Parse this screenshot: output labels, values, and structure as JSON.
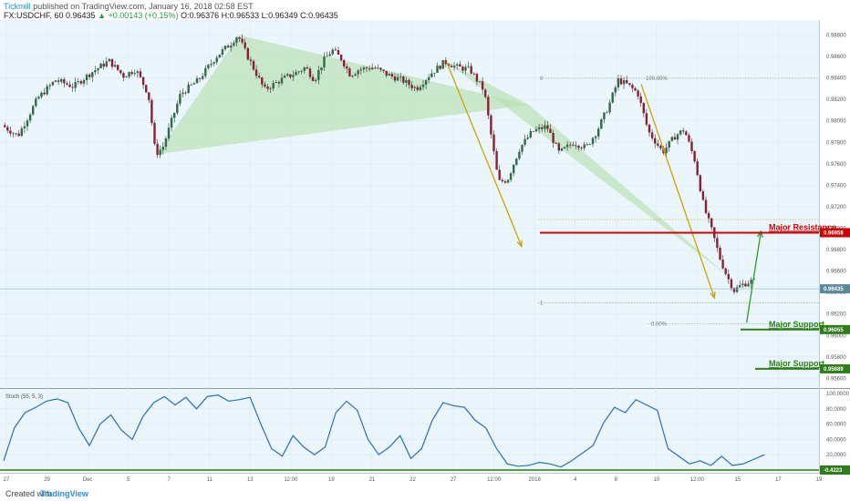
{
  "header": {
    "author": "Tickmill",
    "published_text": "published on TradingView.com, January 16, 2018 02:58 EST",
    "symbol_line": "FX:USDCHF, 60",
    "price": "0.96435",
    "change": "▲ +0.00143 (+0.15%)",
    "ohlc": "O:0.96376 H:0.96533 L:0.96349 C:0.96435"
  },
  "footer": {
    "created_with": "Created with",
    "brand": "TradingView"
  },
  "chart_data": [
    {
      "type": "candlestick",
      "title": "FX:USDCHF, 60",
      "x_ticks": [
        "27",
        "29",
        "Dec",
        "5",
        "7",
        "11",
        "13",
        "12:00",
        "19",
        "21",
        "22",
        "27",
        "12:00",
        "2018",
        "4",
        "8",
        "10",
        "12:00",
        "15",
        "17",
        "19"
      ],
      "y_ticks": [
        "0.98800",
        "0.98600",
        "0.98400",
        "0.98200",
        "0.98000",
        "0.97800",
        "0.97600",
        "0.97400",
        "0.97200",
        "0.97000",
        "0.96800",
        "0.96600",
        "0.96400",
        "0.96200",
        "0.96000",
        "0.95800",
        "0.95600"
      ],
      "ylim": [
        0.9551,
        0.9894
      ],
      "path": [
        [
          0,
          0.9796
        ],
        [
          9,
          0.9786
        ],
        [
          20,
          0.9821
        ],
        [
          30,
          0.9838
        ],
        [
          40,
          0.9832
        ],
        [
          50,
          0.9845
        ],
        [
          60,
          0.9856
        ],
        [
          68,
          0.9842
        ],
        [
          75,
          0.9848
        ],
        [
          82,
          0.9825
        ],
        [
          86,
          0.9769
        ],
        [
          90,
          0.9775
        ],
        [
          100,
          0.9825
        ],
        [
          110,
          0.9838
        ],
        [
          120,
          0.986
        ],
        [
          128,
          0.9872
        ],
        [
          132,
          0.988
        ],
        [
          137,
          0.9862
        ],
        [
          147,
          0.9829
        ],
        [
          157,
          0.9839
        ],
        [
          165,
          0.9845
        ],
        [
          170,
          0.985
        ],
        [
          175,
          0.9838
        ],
        [
          180,
          0.9856
        ],
        [
          185,
          0.9866
        ],
        [
          190,
          0.9858
        ],
        [
          195,
          0.9843
        ],
        [
          200,
          0.9848
        ],
        [
          208,
          0.985
        ],
        [
          216,
          0.9843
        ],
        [
          224,
          0.9838
        ],
        [
          232,
          0.983
        ],
        [
          240,
          0.9844
        ],
        [
          248,
          0.9855
        ],
        [
          255,
          0.985
        ],
        [
          262,
          0.9848
        ],
        [
          270,
          0.9828
        ],
        [
          278,
          0.9743
        ],
        [
          283,
          0.9745
        ],
        [
          290,
          0.9775
        ],
        [
          297,
          0.979
        ],
        [
          305,
          0.9795
        ],
        [
          312,
          0.977
        ],
        [
          320,
          0.978
        ],
        [
          327,
          0.9775
        ],
        [
          333,
          0.979
        ],
        [
          340,
          0.9815
        ],
        [
          345,
          0.9838
        ],
        [
          350,
          0.9834
        ],
        [
          356,
          0.9826
        ],
        [
          362,
          0.979
        ],
        [
          370,
          0.9771
        ],
        [
          377,
          0.9786
        ],
        [
          382,
          0.9792
        ],
        [
          388,
          0.9763
        ],
        [
          393,
          0.972
        ],
        [
          398,
          0.9695
        ],
        [
          402,
          0.9672
        ],
        [
          406,
          0.9655
        ],
        [
          410,
          0.9642
        ],
        [
          414,
          0.9647
        ],
        [
          420,
          0.9651
        ]
      ],
      "current_price": 0.96435
    },
    {
      "type": "annotations",
      "pattern_triangles": [
        {
          "points": [
            [
              86,
              0.9769
            ],
            [
              132,
              0.988
            ],
            [
              294,
              0.9815
            ]
          ]
        },
        {
          "points": [
            [
              294,
              0.9815
            ],
            [
              248,
              0.9855
            ],
            [
              406,
              0.9655
            ]
          ]
        }
      ],
      "fib_levels": [
        {
          "label": "0",
          "value": 0.98397
        },
        {
          "label": "100.00%",
          "value": 0.98397
        },
        {
          "label": "",
          "value": 0.9708
        },
        {
          "label": "1",
          "value": 0.96303
        },
        {
          "label": "0.00%",
          "value": 0.9611
        }
      ],
      "horizontal_levels": [
        {
          "label": "Major Resistance",
          "value": 0.96958,
          "tag": "0.96958",
          "color": "#cc0000"
        },
        {
          "label": "Major Support",
          "value": 0.96055,
          "tag": "0.96055",
          "color": "#2e7d18"
        },
        {
          "label": "Major Support",
          "value": 0.95689,
          "tag": "0.95689",
          "color": "#2e7d18"
        }
      ],
      "price_tag": {
        "text": "0.96435",
        "value": 0.96435
      },
      "arrows": [
        {
          "from": [
            248,
            0.9855
          ],
          "to": [
            290,
            0.9683
          ],
          "color": "#c9a400"
        },
        {
          "from": [
            357,
            0.9834
          ],
          "to": [
            398,
            0.9635
          ],
          "color": "#c9a400"
        },
        {
          "from": [
            416,
            0.9612
          ],
          "to": [
            424,
            0.9697
          ],
          "color": "#2e9d1e"
        }
      ]
    },
    {
      "type": "line",
      "title": "Stoch (55, 5, 3)",
      "y_ticks": [
        "100.0000",
        "80.0000",
        "60.0000",
        "40.0000",
        "20.0000"
      ],
      "ylim": [
        0,
        100
      ],
      "current_value": "-0.4223",
      "series": [
        {
          "name": "Stoch (55, 5, 3)",
          "x": [
            0,
            6,
            12,
            18,
            24,
            30,
            36,
            42,
            48,
            54,
            60,
            66,
            72,
            78,
            84,
            90,
            96,
            102,
            108,
            114,
            120,
            126,
            132,
            138,
            144,
            150,
            156,
            162,
            168,
            174,
            180,
            186,
            192,
            198,
            204,
            210,
            216,
            222,
            228,
            234,
            240,
            246,
            252,
            258,
            264,
            270,
            276,
            282,
            288,
            294,
            300,
            306,
            312,
            318,
            324,
            330,
            336,
            342,
            348,
            354,
            360,
            366,
            372,
            378,
            384,
            390,
            396,
            402,
            408,
            414,
            420,
            426
          ],
          "values": [
            12,
            55,
            75,
            82,
            90,
            93,
            88,
            55,
            32,
            60,
            72,
            52,
            40,
            70,
            88,
            96,
            85,
            95,
            80,
            96,
            98,
            90,
            92,
            95,
            60,
            28,
            18,
            45,
            30,
            20,
            30,
            75,
            90,
            78,
            40,
            20,
            30,
            45,
            15,
            28,
            65,
            88,
            84,
            82,
            65,
            55,
            28,
            8,
            5,
            6,
            10,
            8,
            4,
            12,
            22,
            32,
            62,
            82,
            75,
            92,
            85,
            78,
            28,
            18,
            8,
            12,
            6,
            18,
            6,
            8,
            14,
            20
          ]
        }
      ]
    }
  ]
}
